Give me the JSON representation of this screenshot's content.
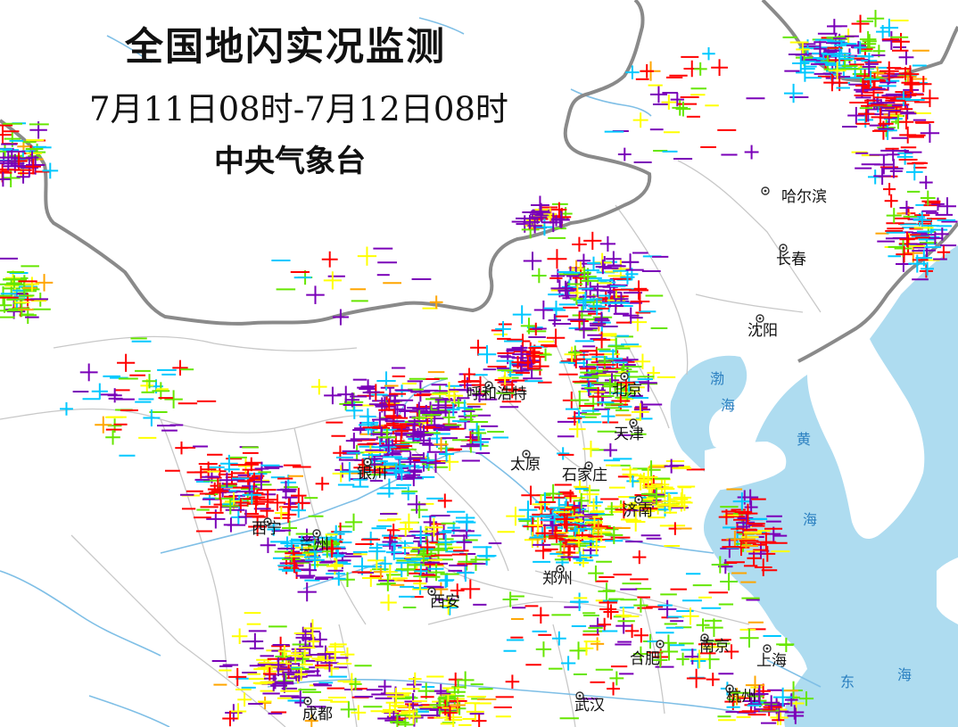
{
  "title": "全国地闪实况监测",
  "subtitle": "7月11日08时-7月12日08时",
  "agency": "中央气象台",
  "colors": {
    "land": "#ffffff",
    "sea": "#aedcf0",
    "national_border": "#8a8a8a",
    "province_border": "#c8c8c8",
    "river": "#7fbfe6",
    "strike_palette": [
      "#7a00b8",
      "#ff0000",
      "#00c8ff",
      "#66e600",
      "#ffff00",
      "#ffa500"
    ]
  },
  "strike_symbols": {
    "positive": "+",
    "negative": "−"
  },
  "cities": [
    {
      "id": "harbin",
      "name": "哈尔滨"
    },
    {
      "id": "changchun",
      "name": "长春"
    },
    {
      "id": "shenyang",
      "name": "沈阳"
    },
    {
      "id": "hohhot",
      "name": "呼和浩特"
    },
    {
      "id": "beijing",
      "name": "北京"
    },
    {
      "id": "tianjin",
      "name": "天津"
    },
    {
      "id": "taiyuan",
      "name": "太原"
    },
    {
      "id": "shijiazhuang",
      "name": "石家庄"
    },
    {
      "id": "yinchuan",
      "name": "银川"
    },
    {
      "id": "jinan",
      "name": "济南"
    },
    {
      "id": "xining",
      "name": "西宁"
    },
    {
      "id": "lanzhou",
      "name": "兰州"
    },
    {
      "id": "zhengzhou",
      "name": "郑州"
    },
    {
      "id": "xian",
      "name": "西安"
    },
    {
      "id": "nanjing",
      "name": "南京"
    },
    {
      "id": "hefei",
      "name": "合肥"
    },
    {
      "id": "shanghai",
      "name": "上海"
    },
    {
      "id": "hangzhou",
      "name": "杭州"
    },
    {
      "id": "wuhan",
      "name": "武汉"
    },
    {
      "id": "chengdu",
      "name": "成都"
    }
  ],
  "sea_labels": [
    {
      "id": "bohai-1",
      "text": "渤"
    },
    {
      "id": "bohai-2",
      "text": "海"
    },
    {
      "id": "yellow-1",
      "text": "黄"
    },
    {
      "id": "yellow-2",
      "text": "海"
    },
    {
      "id": "east-1",
      "text": "东"
    },
    {
      "id": "east-2",
      "text": "海"
    }
  ]
}
